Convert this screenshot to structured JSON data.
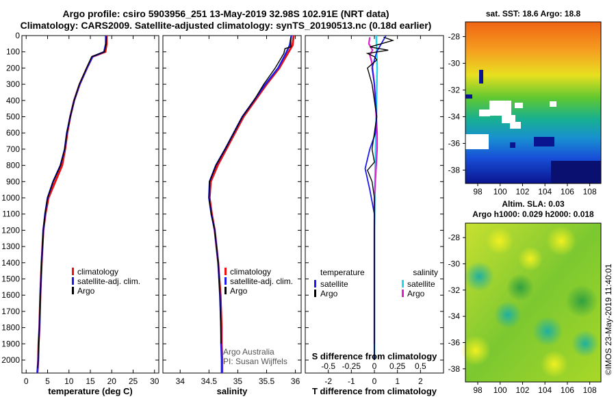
{
  "header": {
    "title_line1": "Argo profile: csiro 5903956_251 13-May-2019 32.98S 102.91E (NRT data)",
    "title_line2": "Climatology: CARS2009. Satellite-adjusted climatology: synTS_20190513.nc (0.18d earlier)"
  },
  "signature": {
    "line1": "Argo Australia",
    "line2": "PI: Susan Wijffels"
  },
  "credit": "©IMOS 23-May-2019 11:40:01",
  "colors": {
    "climatology": "#ee1111",
    "satellite": "#1a1aee",
    "argo": "#000000",
    "satellite_salinity": "#22d8f0",
    "argo_salinity": "#e020d0"
  },
  "chart_data": [
    {
      "type": "line",
      "panel": "temperature",
      "xlabel": "temperature (deg C)",
      "ylabel": "",
      "xlim": [
        -1,
        31
      ],
      "ylim": [
        2080,
        0
      ],
      "xticks": [
        0,
        5,
        10,
        15,
        20,
        25,
        30
      ],
      "yticks": [
        0,
        100,
        200,
        300,
        400,
        500,
        600,
        700,
        800,
        900,
        1000,
        1100,
        1200,
        1300,
        1400,
        1500,
        1600,
        1700,
        1800,
        1900,
        2000
      ],
      "legend": [
        "climatology",
        "satellite-adj. clim.",
        "Argo"
      ],
      "series": [
        {
          "name": "climatology",
          "x": [
            18.8,
            18.8,
            18.5,
            15.5,
            14.2,
            12.5,
            11.2,
            10.3,
            9.6,
            9.1,
            8.4,
            6.8,
            5.2,
            4.5,
            4.0,
            3.6,
            3.3,
            3.1,
            2.9,
            2.8,
            2.7,
            2.6
          ],
          "y": [
            0,
            50,
            100,
            130,
            200,
            300,
            400,
            500,
            600,
            700,
            800,
            900,
            1000,
            1100,
            1200,
            1400,
            1600,
            1800,
            1900,
            2000,
            2050,
            2080
          ]
        },
        {
          "name": "satellite-adj. clim.",
          "x": [
            18.6,
            18.6,
            18.2,
            15.5,
            14.2,
            12.5,
            11.2,
            10.3,
            9.5,
            9.0,
            8.0,
            6.3,
            5.0,
            4.4,
            4.0,
            3.6,
            3.3,
            3.1,
            2.9,
            2.8,
            2.7,
            2.65
          ],
          "y": [
            0,
            50,
            100,
            130,
            200,
            300,
            400,
            500,
            600,
            700,
            800,
            900,
            1000,
            1100,
            1200,
            1400,
            1600,
            1800,
            1900,
            2000,
            2050,
            2080
          ]
        },
        {
          "name": "Argo",
          "x": [
            18.8,
            18.7,
            18.3,
            15.3,
            14.1,
            12.4,
            11.2,
            10.3,
            9.5,
            9.0,
            8.0,
            6.3,
            5.0,
            4.4,
            4.0,
            3.6,
            3.3,
            3.1,
            2.9,
            2.8,
            2.7
          ],
          "y": [
            5,
            50,
            100,
            130,
            200,
            300,
            400,
            500,
            600,
            700,
            800,
            900,
            1000,
            1100,
            1200,
            1400,
            1600,
            1800,
            1900,
            2000,
            2050
          ]
        }
      ]
    },
    {
      "type": "line",
      "panel": "salinity",
      "xlabel": "salinity",
      "xlim": [
        33.7,
        36.1
      ],
      "ylim": [
        2080,
        0
      ],
      "xticks": [
        34,
        34.5,
        35,
        35.5,
        36
      ],
      "xtick_labels": [
        "34",
        "34.5",
        "35",
        "35.5",
        "36"
      ],
      "legend": [
        "climatology",
        "satellite-adj. clim.",
        "Argo"
      ],
      "series": [
        {
          "name": "climatology",
          "x": [
            35.97,
            35.95,
            35.85,
            35.72,
            35.5,
            35.3,
            35.1,
            34.95,
            34.8,
            34.65,
            34.53,
            34.51,
            34.55,
            34.6,
            34.66,
            34.7,
            34.72,
            34.72,
            34.73,
            34.73
          ],
          "y": [
            0,
            60,
            120,
            200,
            300,
            400,
            500,
            600,
            700,
            800,
            900,
            1000,
            1100,
            1200,
            1400,
            1600,
            1800,
            1900,
            2000,
            2080
          ]
        },
        {
          "name": "satellite-adj. clim.",
          "x": [
            35.93,
            35.9,
            35.82,
            35.7,
            35.48,
            35.28,
            35.08,
            34.93,
            34.78,
            34.62,
            34.51,
            34.5,
            34.54,
            34.6,
            34.66,
            34.69,
            34.71,
            34.71,
            34.72,
            34.72
          ],
          "y": [
            0,
            60,
            120,
            200,
            300,
            400,
            500,
            600,
            700,
            800,
            900,
            1000,
            1100,
            1200,
            1400,
            1600,
            1800,
            1900,
            2000,
            2080
          ]
        },
        {
          "name": "Argo",
          "x": [
            35.92,
            35.92,
            35.82,
            35.8,
            35.65,
            35.45,
            35.28,
            35.08,
            34.93,
            34.78,
            34.62,
            34.51,
            34.5,
            34.54,
            34.6,
            34.66,
            34.69,
            34.71
          ],
          "y": [
            10,
            70,
            80,
            110,
            200,
            300,
            400,
            500,
            600,
            700,
            800,
            900,
            1000,
            1100,
            1200,
            1400,
            1600,
            1900
          ]
        }
      ]
    },
    {
      "type": "line",
      "panel": "difference",
      "xlabel": "T difference from climatology",
      "xlabel_top": "S difference from climatology",
      "xlim": [
        -3,
        3
      ],
      "xlim_s": [
        -0.75,
        0.75
      ],
      "ylim": [
        2080,
        0
      ],
      "xticks": [
        -2,
        -1,
        0,
        1,
        2
      ],
      "xticks_s": [
        -0.5,
        -0.25,
        0,
        0.25,
        0.5
      ],
      "xtick_labels_s": [
        "-0.5",
        "-0.25",
        "0",
        "0.25",
        "0.5"
      ],
      "legend_title_t": "temperature",
      "legend_title_s": "salinity",
      "legend_t": [
        "satellite",
        "Argo"
      ],
      "legend_s": [
        "satellite",
        "Argo"
      ],
      "series": [
        {
          "name": "T satellite",
          "x": [
            0.5,
            0.3,
            0.1,
            -0.1,
            0.0,
            0.05,
            0.1,
            0.05,
            -0.2,
            -0.4,
            -0.2,
            0.0,
            0.0,
            0.0
          ],
          "y": [
            0,
            50,
            100,
            200,
            300,
            400,
            500,
            600,
            700,
            820,
            950,
            1100,
            1500,
            2000
          ]
        },
        {
          "name": "T Argo",
          "x": [
            0.4,
            0.8,
            0.3,
            -0.2,
            0.6,
            -0.3,
            0.0,
            0.1,
            -0.3,
            -0.1,
            0.1,
            -0.1,
            0.0,
            -0.3,
            -0.1,
            0.0,
            0.0,
            0.0
          ],
          "y": [
            10,
            30,
            50,
            70,
            90,
            110,
            130,
            150,
            200,
            300,
            500,
            700,
            780,
            830,
            900,
            1000,
            1500,
            2000
          ]
        },
        {
          "name": "S satellite",
          "x": [
            0.02,
            0.03,
            0.02,
            0.01,
            0.0,
            0.0
          ],
          "y": [
            0,
            200,
            500,
            800,
            1200,
            2000
          ]
        },
        {
          "name": "S Argo",
          "x": [
            -0.05,
            -0.06,
            -0.02,
            -0.05,
            -0.03,
            -0.02,
            0.0,
            0.01,
            0.02,
            0.03,
            0.03,
            0.02,
            0.0,
            0.0
          ],
          "y": [
            10,
            50,
            90,
            120,
            160,
            200,
            300,
            400,
            500,
            600,
            700,
            800,
            1000,
            1900
          ]
        }
      ]
    },
    {
      "type": "heatmap",
      "panel": "sst-map",
      "title": "sat. SST: 18.6 Argo: 18.8",
      "xticks": [
        98,
        100,
        102,
        104,
        106,
        108
      ],
      "yticks": [
        -28,
        -30,
        -32,
        -34,
        -36,
        -38
      ],
      "xlim": [
        96.9,
        109
      ],
      "ylim": [
        -39,
        -26.9
      ]
    },
    {
      "type": "heatmap",
      "panel": "sla-map",
      "title_line1": "Altim. SLA: 0.03",
      "title_line2": "Argo h1000: 0.029 h2000: 0.018",
      "xticks": [
        98,
        100,
        102,
        104,
        106,
        108
      ],
      "yticks": [
        -28,
        -30,
        -32,
        -34,
        -36,
        -38
      ],
      "xlim": [
        96.9,
        109
      ],
      "ylim": [
        -39,
        -26.9
      ]
    }
  ]
}
